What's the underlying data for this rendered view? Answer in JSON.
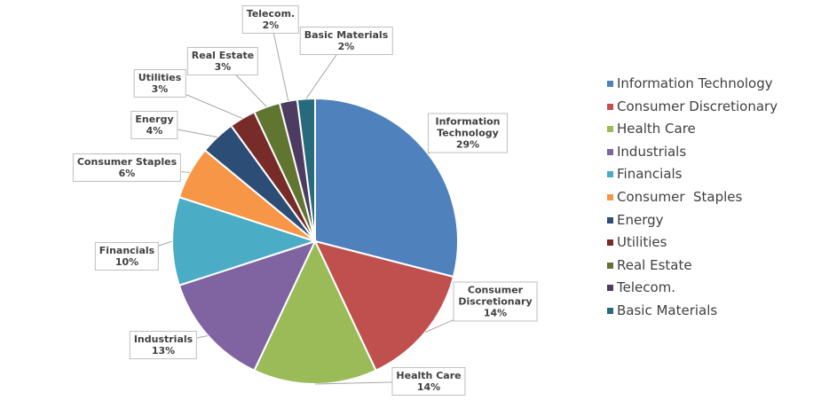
{
  "chart_data": {
    "type": "pie",
    "categories": [
      "Information Technology",
      "Consumer Discretionary",
      "Health Care",
      "Industrials",
      "Financials",
      "Consumer  Staples",
      "Energy",
      "Utilities",
      "Real Estate",
      "Telecom.",
      "Basic Materials"
    ],
    "values": [
      29,
      14,
      14,
      13,
      10,
      6,
      4,
      3,
      3,
      2,
      2
    ],
    "value_labels": [
      "29%",
      "14%",
      "14%",
      "13%",
      "10%",
      "6%",
      "4%",
      "3%",
      "3%",
      "2%",
      "2%"
    ],
    "colors": [
      "#4f81bd",
      "#c0504d",
      "#9bbb59",
      "#8064a2",
      "#4bacc6",
      "#f79646",
      "#2c4d75",
      "#772c2a",
      "#5f7530",
      "#4d3b62",
      "#276a7c"
    ],
    "legend": "right"
  }
}
